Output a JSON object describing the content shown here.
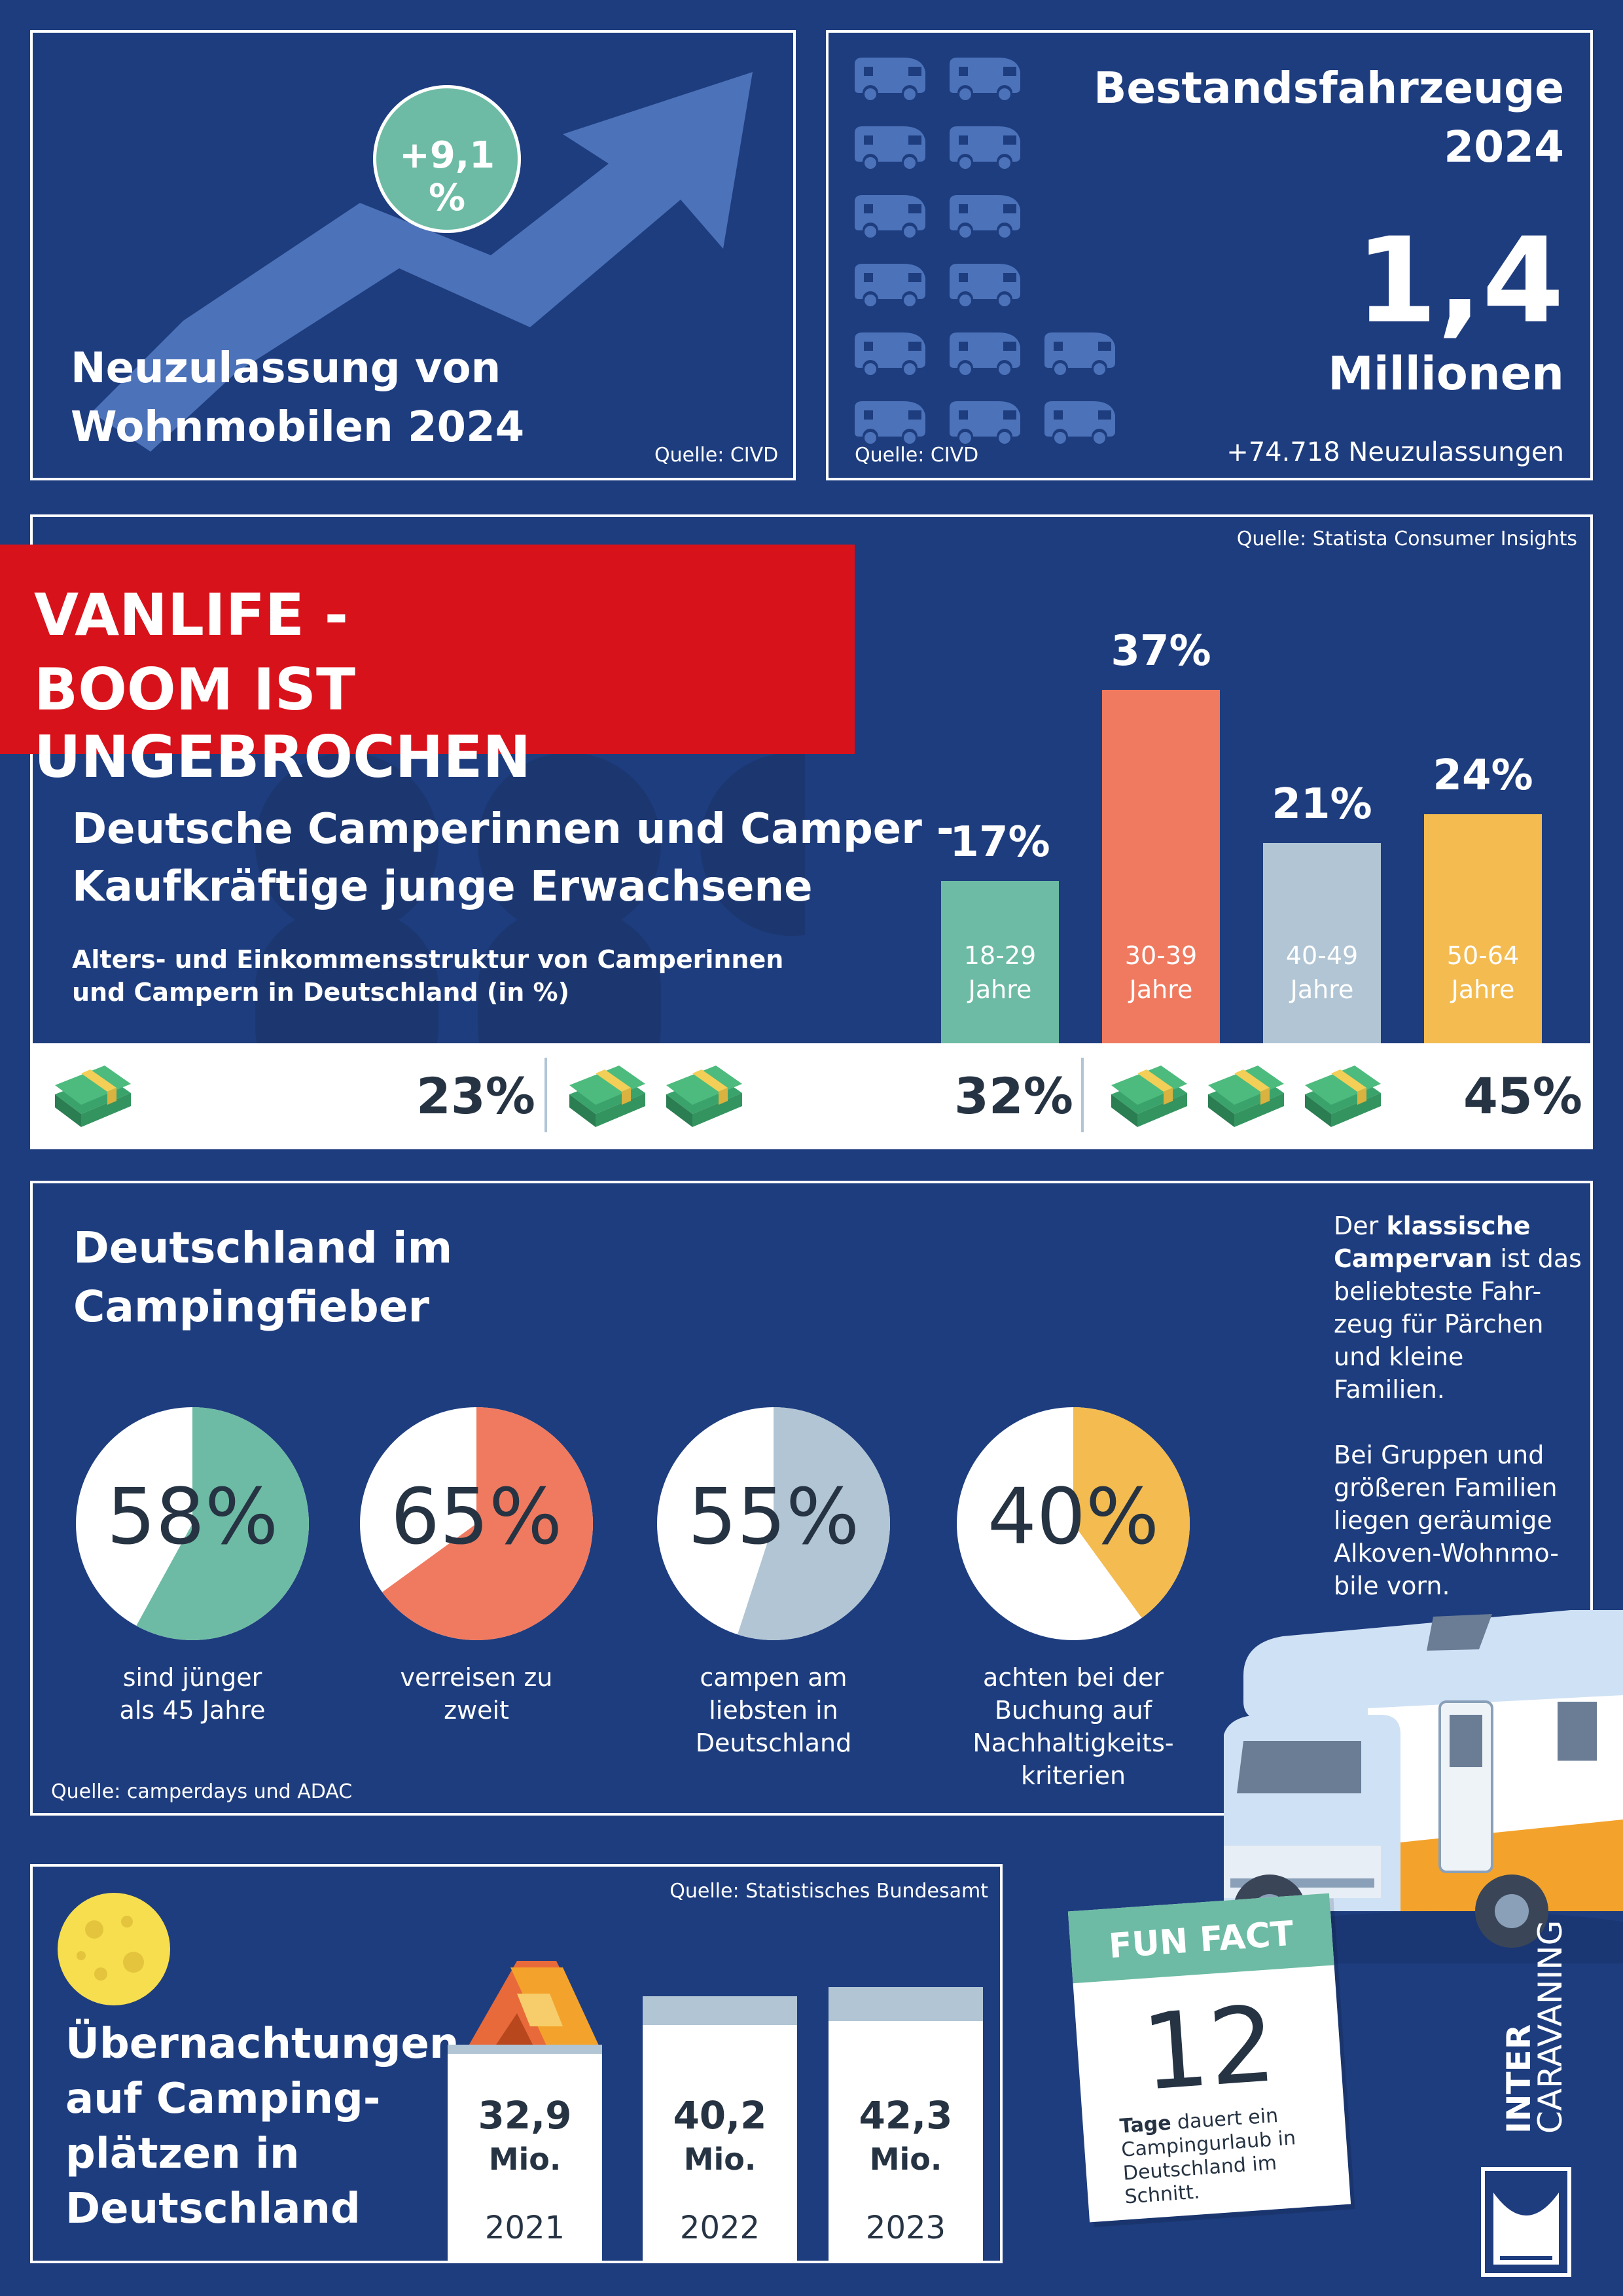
{
  "top_left": {
    "badge": "+9,1 %",
    "title_line1": "Neuzulassung von",
    "title_line2": "Wohnmobilen 2024",
    "source": "Quelle: CIVD"
  },
  "top_right": {
    "title_line1": "Bestandsfahrzeuge",
    "title_line2": "2024",
    "big_number": "1,4",
    "unit": "Millionen",
    "sub": "+74.718 Neuzulassungen",
    "source": "Quelle: CIVD"
  },
  "banner": {
    "line1": "VANLIFE -",
    "line2": "BOOM IST UNGEBROCHEN"
  },
  "age_section": {
    "source": "Quelle: Statista Consumer Insights",
    "title_line1": "Deutsche Camperinnen und Camper -",
    "title_line2": "Kaufkräftige junge Erwachsene",
    "sub_line1": "Alters- und Einkommensstruktur von Camperinnen",
    "sub_line2": "und Campern in Deutschland (in %)"
  },
  "chart_data": {
    "type": "bar",
    "categories": [
      "18-29 Jahre",
      "30-39 Jahre",
      "40-49 Jahre",
      "50-64 Jahre"
    ],
    "values": [
      17,
      37,
      21,
      24
    ],
    "value_labels": [
      "17%",
      "37%",
      "21%",
      "24%"
    ],
    "label_lines": [
      [
        "18-29",
        "Jahre"
      ],
      [
        "30-39",
        "Jahre"
      ],
      [
        "40-49",
        "Jahre"
      ],
      [
        "50-64",
        "Jahre"
      ]
    ],
    "colors": [
      "#6dbba4",
      "#ef7a60",
      "#b1c5d4",
      "#f3bb50"
    ]
  },
  "income": {
    "values": [
      "23%",
      "32%",
      "45%"
    ],
    "money_counts": [
      1,
      2,
      3
    ]
  },
  "fever": {
    "title_line1": "Deutschland im",
    "title_line2": "Campingfieber",
    "source": "Quelle: camperdays und ADAC",
    "pies": [
      {
        "pct": "58%",
        "value": 58,
        "color": "#6dbba4",
        "label": [
          "sind jünger",
          "als 45 Jahre"
        ]
      },
      {
        "pct": "65%",
        "value": 65,
        "color": "#ef7a60",
        "label": [
          "verreisen zu",
          "zweit"
        ]
      },
      {
        "pct": "55%",
        "value": 55,
        "color": "#b1c5d4",
        "label": [
          "campen am",
          "liebsten in",
          "Deutschland"
        ]
      },
      {
        "pct": "40%",
        "value": 40,
        "color": "#f3bb50",
        "label": [
          "achten bei der",
          "Buchung auf",
          "Nachhaltigkeits-",
          "kriterien"
        ]
      }
    ],
    "side_text": {
      "p1_pre": "Der ",
      "p1_bold1": "klassische",
      "p1_bold2": "Campervan",
      "p1_rest1": " ist das",
      "p1_lines": [
        "beliebteste Fahr-",
        "zeug für Pärchen",
        "und kleine Familien."
      ],
      "p2_lines": [
        "Bei Gruppen und",
        "größeren Familien",
        "liegen geräumige",
        "Alkoven-Wohnmo-",
        "bile vorn."
      ]
    }
  },
  "nights": {
    "source": "Quelle: Statistisches Bundesamt",
    "title_lines": [
      "Übernachtungen",
      "auf Camping-",
      "plätzen in",
      "Deutschland"
    ],
    "cards": [
      {
        "value": "32,9",
        "unit": "Mio.",
        "year": "2021"
      },
      {
        "value": "40,2",
        "unit": "Mio.",
        "year": "2022"
      },
      {
        "value": "42,3",
        "unit": "Mio.",
        "year": "2023"
      }
    ]
  },
  "fun_fact": {
    "header": "FUN FACT",
    "number": "12",
    "text_bold": "Tage",
    "text_rest1": " dauert ein",
    "text_lines": [
      "Campingurlaub in",
      "Deutschland im",
      "Schnitt."
    ]
  },
  "logo": {
    "line1": "INTER",
    "line2": "CARAVANING"
  }
}
